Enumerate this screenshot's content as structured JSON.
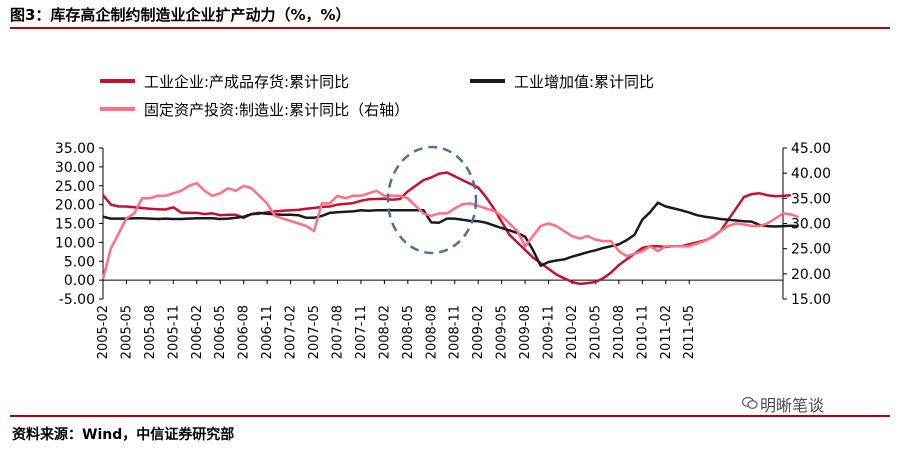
{
  "title": "图3：库存高企制约制造业企业扩产动力（%，%）",
  "source": "资料来源：Wind，中信证券研究部",
  "watermark": "明晰笔谈",
  "chart_data": {
    "type": "line",
    "title": "图3：库存高企制约制造业企业扩产动力（%，%）",
    "y_left": {
      "ylim": [
        -5,
        35
      ],
      "ticks": [
        "35.00",
        "30.00",
        "25.00",
        "20.00",
        "15.00",
        "10.00",
        "5.00",
        "0.00",
        "-5.00"
      ]
    },
    "y_right": {
      "ylim": [
        15,
        45
      ],
      "ticks": [
        "45.00",
        "40.00",
        "35.00",
        "30.00",
        "25.00",
        "20.00",
        "15.00"
      ]
    },
    "x_ticks": [
      "2005-02",
      "2005-05",
      "2005-08",
      "2005-11",
      "2006-02",
      "2006-05",
      "2006-08",
      "2006-11",
      "2007-02",
      "2007-05",
      "2007-08",
      "2007-11",
      "2008-02",
      "2008-05",
      "2008-08",
      "2008-11",
      "2009-02",
      "2009-05",
      "2009-08",
      "2009-11",
      "2010-02",
      "2010-05",
      "2010-08",
      "2010-11",
      "2011-02",
      "2011-05"
    ],
    "x_start": "2005-02",
    "legend_position": "top",
    "grid": false,
    "series": [
      {
        "name": "工业企业:产成品存货:累计同比",
        "color": "#c8102e",
        "axis": "left",
        "values": [
          22.5,
          20,
          19.5,
          19.5,
          19.3,
          19.1,
          18.9,
          18.8,
          18.7,
          19.3,
          17.9,
          17.8,
          17.8,
          17.5,
          17.7,
          17.2,
          17.3,
          17.3,
          16.5,
          17.5,
          17.6,
          18,
          18.2,
          18.4,
          18.5,
          18.6,
          18.9,
          19.1,
          19.4,
          19.5,
          20,
          20.2,
          20.4,
          21,
          21.4,
          21.5,
          21.6,
          21.3,
          21.5,
          23.5,
          25,
          26.5,
          27.2,
          28.2,
          28.5,
          27.5,
          26.5,
          25.5,
          24.5,
          22,
          19,
          15.5,
          12,
          10,
          8,
          6,
          4.5,
          3,
          1.5,
          0.5,
          -0.5,
          -1,
          -0.8,
          -0.5,
          0.5,
          2,
          4,
          5.5,
          7,
          8.5,
          9,
          9,
          8.8,
          9,
          9,
          9.5,
          10,
          10.5,
          11.5,
          13,
          16,
          19,
          22,
          22.8,
          23,
          22.5,
          22.2,
          22.3,
          22.5
        ]
      },
      {
        "name": "工业增加值:累计同比",
        "color": "#1a1a1a",
        "axis": "left",
        "values": [
          16.8,
          16.3,
          16.3,
          16.3,
          16.4,
          16.4,
          16.3,
          16.2,
          16.3,
          16.2,
          16.2,
          16.3,
          16.4,
          16.4,
          16.4,
          16.2,
          16.3,
          16.5,
          16.8,
          17.5,
          17.8,
          17.6,
          17.4,
          17.3,
          17.3,
          17.2,
          16.5,
          16.5,
          17,
          17.8,
          18,
          18.1,
          18.2,
          18.5,
          18.4,
          18.5,
          18.5,
          18.5,
          18.5,
          18.5,
          18.5,
          18.5,
          15.3,
          15.2,
          16.3,
          16.3,
          16,
          15.7,
          15.6,
          15.2,
          14.5,
          13.8,
          13.2,
          12.5,
          11.5,
          8,
          3.8,
          4.8,
          5.2,
          5.5,
          6.2,
          6.8,
          7.4,
          7.9,
          8.5,
          9,
          9.5,
          10.6,
          12,
          16,
          18,
          20.5,
          19.5,
          19,
          18.5,
          17.9,
          17.2,
          16.8,
          16.5,
          16.2,
          16,
          15.8,
          15.6,
          15.5,
          14.6,
          14.3,
          14.2,
          14.3,
          14.4,
          14.3
        ]
      },
      {
        "name": "固定资产投资:制造业:累计同比（右轴）",
        "color": "#ff6f80",
        "axis": "right",
        "values": [
          19,
          25,
          28,
          31,
          32,
          35,
          35,
          35.5,
          35.5,
          36,
          36.5,
          37.5,
          38,
          36.5,
          35.5,
          36,
          37,
          36.5,
          37.5,
          37,
          35.5,
          34,
          31.5,
          31,
          30.5,
          30,
          29.5,
          28.5,
          34,
          34,
          35.5,
          35,
          35.5,
          35.5,
          36,
          36.5,
          35.5,
          35.5,
          35.5,
          35,
          33.5,
          32,
          31.5,
          32,
          32,
          33,
          33.8,
          34,
          33.5,
          33,
          32.5,
          31.5,
          30,
          28.5,
          25.5,
          27.5,
          29.5,
          30,
          29.5,
          28.5,
          27.5,
          27,
          27.5,
          26.8,
          26.5,
          26.5,
          24.5,
          23.5,
          24,
          24.5,
          25.5,
          24.5,
          25.5,
          25.5,
          25.5,
          25.5,
          26,
          26.5,
          27.5,
          28.5,
          29.5,
          30,
          29.8,
          29.5,
          29.5,
          30,
          31,
          32,
          31.8,
          31.3
        ]
      }
    ]
  }
}
